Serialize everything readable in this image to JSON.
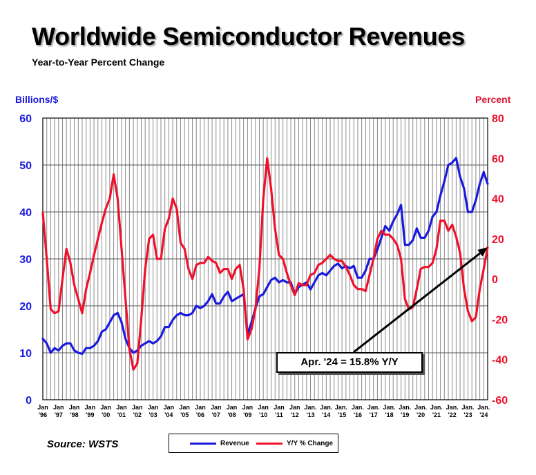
{
  "title": "Worldwide Semiconductor Revenues",
  "subtitle": "Year-to-Year Percent Change",
  "left_axis_unit": "Billions/$",
  "right_axis_unit": "Percent",
  "source": "Source: WSTS",
  "annotation": "Apr. '24 = 15.8% Y/Y",
  "colors": {
    "revenue": "#1a1adf",
    "yoy": "#f0102a",
    "grid": "#8a8a8a",
    "plot_bg": "#ffffff"
  },
  "legend": [
    {
      "label": "Revenue",
      "color": "#1a1adf"
    },
    {
      "label": "Y/Y % Change",
      "color": "#f0102a"
    }
  ],
  "chart_data": {
    "type": "line",
    "title": "Worldwide Semiconductor Revenues",
    "subtitle": "Year-to-Year Percent Change",
    "x_tick_labels": [
      [
        "Jan",
        "'96"
      ],
      [
        "Jan",
        "'97"
      ],
      [
        "Jan",
        "'98"
      ],
      [
        "Jan",
        "'99"
      ],
      [
        "Jan",
        "'00"
      ],
      [
        "Jan",
        "'01"
      ],
      [
        "Jan",
        "'02"
      ],
      [
        "Jan",
        "'03"
      ],
      [
        "Jan",
        "'04"
      ],
      [
        "Jan",
        "'05"
      ],
      [
        "Jan",
        "'06"
      ],
      [
        "Jan",
        "'07"
      ],
      [
        "Jan",
        "'08"
      ],
      [
        "Jan",
        "'09"
      ],
      [
        "Jan",
        "'10"
      ],
      [
        "Jan",
        "'11"
      ],
      [
        "Jan",
        "'12"
      ],
      [
        "Jan.",
        "'13"
      ],
      [
        "Jan.",
        "'14"
      ],
      [
        "Jan. ",
        "'15"
      ],
      [
        "Jan.",
        "'16"
      ],
      [
        "Jan.",
        "'17"
      ],
      [
        "Jan.",
        "'18"
      ],
      [
        "Jan.",
        "'19"
      ],
      [
        "Jan.",
        "'20"
      ],
      [
        "Jan.",
        "'21"
      ],
      [
        "Jan.",
        "'22"
      ],
      [
        "Jan.",
        "'23"
      ],
      [
        "Jan.",
        "'24"
      ]
    ],
    "x_range": [
      "1996-01",
      "2024-04"
    ],
    "y_left": {
      "label": "Billions/$",
      "min": 0,
      "max": 60,
      "ticks": [
        0,
        10,
        20,
        30,
        40,
        50,
        60
      ]
    },
    "y_right": {
      "label": "Percent",
      "min": -60,
      "max": 80,
      "ticks": [
        -60,
        -40,
        -20,
        0,
        20,
        40,
        60,
        80
      ]
    },
    "grid": true,
    "legend_position": "bottom",
    "series": [
      {
        "name": "Revenue",
        "axis": "left",
        "points": [
          [
            "1996-01",
            13
          ],
          [
            "1996-04",
            12
          ],
          [
            "1996-07",
            10
          ],
          [
            "1996-10",
            11
          ],
          [
            "1997-01",
            10.5
          ],
          [
            "1997-04",
            11.5
          ],
          [
            "1997-07",
            12
          ],
          [
            "1997-10",
            12
          ],
          [
            "1998-01",
            10.5
          ],
          [
            "1998-04",
            10
          ],
          [
            "1998-07",
            9.8
          ],
          [
            "1998-10",
            11
          ],
          [
            "1999-01",
            11
          ],
          [
            "1999-04",
            11.5
          ],
          [
            "1999-07",
            12.5
          ],
          [
            "1999-10",
            14.5
          ],
          [
            "2000-01",
            15
          ],
          [
            "2000-04",
            16.5
          ],
          [
            "2000-07",
            18
          ],
          [
            "2000-10",
            18.5
          ],
          [
            "2001-01",
            16.5
          ],
          [
            "2001-04",
            13
          ],
          [
            "2001-07",
            11
          ],
          [
            "2001-10",
            10
          ],
          [
            "2002-01",
            10.5
          ],
          [
            "2002-04",
            11.5
          ],
          [
            "2002-07",
            12
          ],
          [
            "2002-10",
            12.5
          ],
          [
            "2003-01",
            12
          ],
          [
            "2003-04",
            12.5
          ],
          [
            "2003-07",
            13.5
          ],
          [
            "2003-10",
            15.5
          ],
          [
            "2004-01",
            15.5
          ],
          [
            "2004-04",
            17
          ],
          [
            "2004-07",
            18
          ],
          [
            "2004-10",
            18.5
          ],
          [
            "2005-01",
            18
          ],
          [
            "2005-04",
            18
          ],
          [
            "2005-07",
            18.5
          ],
          [
            "2005-10",
            20
          ],
          [
            "2006-01",
            19.5
          ],
          [
            "2006-04",
            20
          ],
          [
            "2006-07",
            21
          ],
          [
            "2006-10",
            22.5
          ],
          [
            "2007-01",
            20.5
          ],
          [
            "2007-04",
            20.5
          ],
          [
            "2007-07",
            22
          ],
          [
            "2007-10",
            23
          ],
          [
            "2008-01",
            21
          ],
          [
            "2008-04",
            21.5
          ],
          [
            "2008-07",
            22
          ],
          [
            "2008-10",
            22.5
          ],
          [
            "2009-01",
            14
          ],
          [
            "2009-04",
            16.5
          ],
          [
            "2009-07",
            19.5
          ],
          [
            "2009-10",
            22
          ],
          [
            "2010-01",
            22.5
          ],
          [
            "2010-04",
            24
          ],
          [
            "2010-07",
            25.5
          ],
          [
            "2010-10",
            26
          ],
          [
            "2011-01",
            25
          ],
          [
            "2011-04",
            25.5
          ],
          [
            "2011-07",
            25
          ],
          [
            "2011-10",
            25
          ],
          [
            "2012-01",
            22.5
          ],
          [
            "2012-04",
            24
          ],
          [
            "2012-07",
            24.5
          ],
          [
            "2012-10",
            25
          ],
          [
            "2013-01",
            23.5
          ],
          [
            "2013-04",
            25
          ],
          [
            "2013-07",
            26.5
          ],
          [
            "2013-10",
            27
          ],
          [
            "2014-01",
            26.5
          ],
          [
            "2014-04",
            27.5
          ],
          [
            "2014-07",
            28.5
          ],
          [
            "2014-10",
            29
          ],
          [
            "2015-01",
            28
          ],
          [
            "2015-04",
            28.5
          ],
          [
            "2015-07",
            28
          ],
          [
            "2015-10",
            28.5
          ],
          [
            "2016-01",
            26
          ],
          [
            "2016-04",
            26
          ],
          [
            "2016-07",
            27.5
          ],
          [
            "2016-10",
            30
          ],
          [
            "2017-01",
            30
          ],
          [
            "2017-04",
            32
          ],
          [
            "2017-07",
            34.5
          ],
          [
            "2017-10",
            37
          ],
          [
            "2018-01",
            36
          ],
          [
            "2018-04",
            38
          ],
          [
            "2018-07",
            39.5
          ],
          [
            "2018-10",
            41.5
          ],
          [
            "2019-01",
            33
          ],
          [
            "2019-04",
            33
          ],
          [
            "2019-07",
            34
          ],
          [
            "2019-10",
            36.5
          ],
          [
            "2020-01",
            34.5
          ],
          [
            "2020-04",
            34.5
          ],
          [
            "2020-07",
            36
          ],
          [
            "2020-10",
            39
          ],
          [
            "2021-01",
            40
          ],
          [
            "2021-04",
            43.5
          ],
          [
            "2021-07",
            46.5
          ],
          [
            "2021-10",
            50
          ],
          [
            "2022-01",
            50.5
          ],
          [
            "2022-04",
            51.5
          ],
          [
            "2022-07",
            47.5
          ],
          [
            "2022-10",
            45
          ],
          [
            "2023-01",
            40
          ],
          [
            "2023-04",
            40
          ],
          [
            "2023-07",
            42.5
          ],
          [
            "2023-10",
            46
          ],
          [
            "2024-01",
            48.5
          ],
          [
            "2024-04",
            46
          ]
        ]
      },
      {
        "name": "Y/Y % Change",
        "axis": "right",
        "points": [
          [
            "1996-01",
            33
          ],
          [
            "1996-04",
            10
          ],
          [
            "1996-07",
            -15
          ],
          [
            "1996-10",
            -17
          ],
          [
            "1997-01",
            -16
          ],
          [
            "1997-04",
            0
          ],
          [
            "1997-07",
            15
          ],
          [
            "1997-10",
            8
          ],
          [
            "1998-01",
            -3
          ],
          [
            "1998-04",
            -10
          ],
          [
            "1998-07",
            -17
          ],
          [
            "1998-10",
            -5
          ],
          [
            "1999-01",
            3
          ],
          [
            "1999-04",
            12
          ],
          [
            "1999-07",
            20
          ],
          [
            "1999-10",
            28
          ],
          [
            "2000-01",
            35
          ],
          [
            "2000-04",
            40
          ],
          [
            "2000-07",
            52
          ],
          [
            "2000-10",
            40
          ],
          [
            "2001-01",
            15
          ],
          [
            "2001-04",
            -10
          ],
          [
            "2001-07",
            -35
          ],
          [
            "2001-10",
            -45
          ],
          [
            "2002-01",
            -42
          ],
          [
            "2002-04",
            -20
          ],
          [
            "2002-07",
            5
          ],
          [
            "2002-10",
            20
          ],
          [
            "2003-01",
            22
          ],
          [
            "2003-04",
            10
          ],
          [
            "2003-07",
            10
          ],
          [
            "2003-10",
            25
          ],
          [
            "2004-01",
            30
          ],
          [
            "2004-04",
            40
          ],
          [
            "2004-07",
            35
          ],
          [
            "2004-10",
            18
          ],
          [
            "2005-01",
            15
          ],
          [
            "2005-04",
            5
          ],
          [
            "2005-07",
            0
          ],
          [
            "2005-10",
            7
          ],
          [
            "2006-01",
            8
          ],
          [
            "2006-04",
            8
          ],
          [
            "2006-07",
            11
          ],
          [
            "2006-10",
            9
          ],
          [
            "2007-01",
            8
          ],
          [
            "2007-04",
            3
          ],
          [
            "2007-07",
            5
          ],
          [
            "2007-10",
            5
          ],
          [
            "2008-01",
            0
          ],
          [
            "2008-04",
            5
          ],
          [
            "2008-07",
            7
          ],
          [
            "2008-10",
            -5
          ],
          [
            "2009-01",
            -30
          ],
          [
            "2009-04",
            -25
          ],
          [
            "2009-07",
            -15
          ],
          [
            "2009-10",
            5
          ],
          [
            "2010-01",
            40
          ],
          [
            "2010-04",
            60
          ],
          [
            "2010-07",
            45
          ],
          [
            "2010-10",
            25
          ],
          [
            "2011-01",
            12
          ],
          [
            "2011-04",
            10
          ],
          [
            "2011-07",
            3
          ],
          [
            "2011-10",
            -3
          ],
          [
            "2012-01",
            -8
          ],
          [
            "2012-04",
            -2
          ],
          [
            "2012-07",
            -3
          ],
          [
            "2012-10",
            -3
          ],
          [
            "2013-01",
            2
          ],
          [
            "2013-04",
            3
          ],
          [
            "2013-07",
            7
          ],
          [
            "2013-10",
            8
          ],
          [
            "2014-01",
            10
          ],
          [
            "2014-04",
            12
          ],
          [
            "2014-07",
            10
          ],
          [
            "2014-10",
            9
          ],
          [
            "2015-01",
            9
          ],
          [
            "2015-04",
            6
          ],
          [
            "2015-07",
            2
          ],
          [
            "2015-10",
            -3
          ],
          [
            "2016-01",
            -5
          ],
          [
            "2016-04",
            -5
          ],
          [
            "2016-07",
            -6
          ],
          [
            "2016-10",
            2
          ],
          [
            "2017-01",
            10
          ],
          [
            "2017-04",
            20
          ],
          [
            "2017-07",
            24
          ],
          [
            "2017-10",
            22
          ],
          [
            "2018-01",
            22
          ],
          [
            "2018-04",
            20
          ],
          [
            "2018-07",
            17
          ],
          [
            "2018-10",
            10
          ],
          [
            "2019-01",
            -10
          ],
          [
            "2019-04",
            -15
          ],
          [
            "2019-07",
            -14
          ],
          [
            "2019-10",
            -5
          ],
          [
            "2020-01",
            5
          ],
          [
            "2020-04",
            6
          ],
          [
            "2020-07",
            6
          ],
          [
            "2020-10",
            8
          ],
          [
            "2021-01",
            15
          ],
          [
            "2021-04",
            29
          ],
          [
            "2021-07",
            29
          ],
          [
            "2021-10",
            24
          ],
          [
            "2022-01",
            27
          ],
          [
            "2022-04",
            21
          ],
          [
            "2022-07",
            13
          ],
          [
            "2022-10",
            -5
          ],
          [
            "2023-01",
            -16
          ],
          [
            "2023-04",
            -21
          ],
          [
            "2023-07",
            -19
          ],
          [
            "2023-10",
            -5
          ],
          [
            "2024-01",
            5
          ],
          [
            "2024-04",
            15.8
          ]
        ]
      }
    ]
  }
}
